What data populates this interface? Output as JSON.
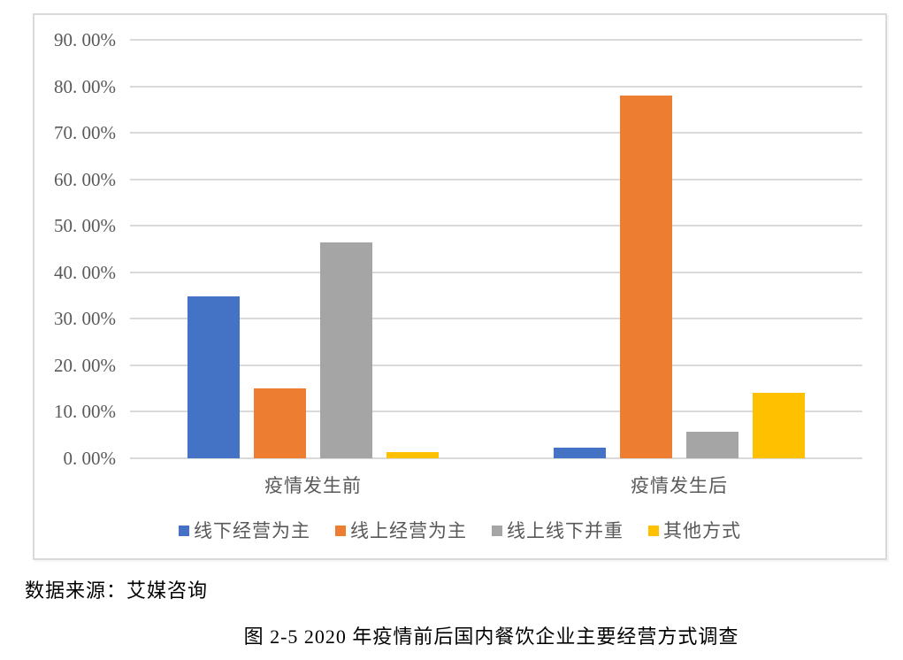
{
  "figure": {
    "source_note": "数据来源：艾媒咨询",
    "caption": "图 2-5 2020 年疫情前后国内餐饮企业主要经营方式调查"
  },
  "chart_data": {
    "type": "bar",
    "title": "",
    "categories": [
      "疫情发生前",
      "疫情发生后"
    ],
    "series": [
      {
        "name": "线下经营为主",
        "color": "#4472C4",
        "values": [
          34.8,
          2.3
        ]
      },
      {
        "name": "线上经营为主",
        "color": "#ED7D31",
        "values": [
          15.0,
          78.0
        ]
      },
      {
        "name": "线上线下并重",
        "color": "#A5A5A5",
        "values": [
          46.5,
          5.7
        ]
      },
      {
        "name": "其他方式",
        "color": "#FFC000",
        "values": [
          1.4,
          14.0
        ]
      }
    ],
    "xlabel": "",
    "ylabel": "",
    "y_axis": {
      "min": 0,
      "max": 90,
      "step": 10,
      "format": "percent",
      "tick_labels": [
        "0. 00%",
        "10. 00%",
        "20. 00%",
        "30. 00%",
        "40. 00%",
        "50. 00%",
        "60. 00%",
        "70. 00%",
        "80. 00%",
        "90. 00%"
      ]
    },
    "grid": true,
    "legend_position": "bottom",
    "colors": {
      "gridline": "#D9D9D9",
      "axis_text": "#595959",
      "panel_border": "#D9D9D9",
      "background": "#FFFFFF"
    }
  }
}
